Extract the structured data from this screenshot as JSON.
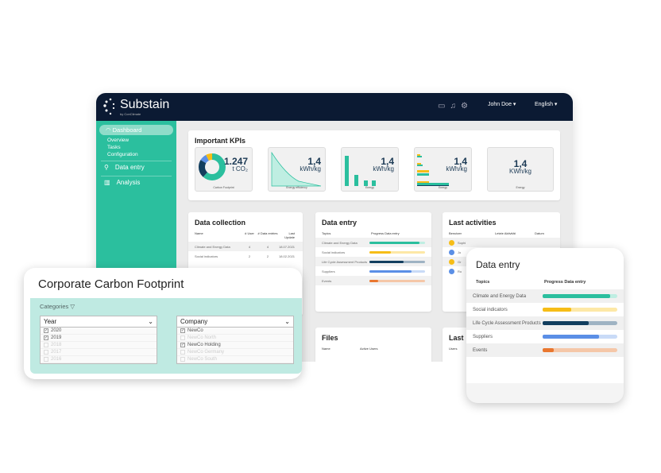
{
  "header": {
    "brand": "Substain",
    "brand_sub": "by ConClimate",
    "user": "John Doe ▾",
    "language": "English ▾",
    "icons": [
      "chat-icon",
      "bell-icon",
      "gear-icon"
    ]
  },
  "sidebar": {
    "dashboard": "Dashboard",
    "sub_items": [
      "Overview",
      "Tasks",
      "Configuration"
    ],
    "data_entry": "Data entry",
    "analysis": "Analysis"
  },
  "kpis": {
    "title": "Important KPIs",
    "items": [
      {
        "value": "1.247",
        "unit": "t CO₂",
        "label": "Carbon Footprint"
      },
      {
        "value": "1,4",
        "unit": "kWh/kg",
        "label": "Energy efficiency"
      },
      {
        "value": "1,4",
        "unit": "kWh/kg",
        "label": "Energy"
      },
      {
        "value": "1,4",
        "unit": "kWh/kg",
        "label": "Energy"
      },
      {
        "value": "1,4",
        "unit": "KWh/kg",
        "label": "Energy"
      }
    ]
  },
  "data_collection": {
    "title": "Data collection",
    "columns": [
      "Name",
      "# User",
      "# Data entries",
      "Last Update"
    ],
    "rows": [
      [
        "Climate and Energy Data",
        "4",
        "4",
        "18.07.2021"
      ],
      [
        "Social indicators",
        "2",
        "2",
        "18.02.2021"
      ]
    ]
  },
  "data_entry": {
    "title": "Data entry",
    "columns": [
      "Topics",
      "Progress Data entry"
    ],
    "rows": [
      {
        "topic": "Climate and Energy Data",
        "progress": 0.9,
        "color": "#2bbf9e",
        "track": "#bfeee2"
      },
      {
        "topic": "Social indicators",
        "progress": 0.38,
        "color": "#f6bd17",
        "track": "#fde8a6"
      },
      {
        "topic": "Life Cycle Assessment Products",
        "progress": 0.62,
        "color": "#123e5e",
        "track": "#9fb3c3"
      },
      {
        "topic": "Suppliers",
        "progress": 0.76,
        "color": "#5b8fe6",
        "track": "#c9dbf7"
      },
      {
        "topic": "Events",
        "progress": 0.15,
        "color": "#e9772f",
        "track": "#f5c7a8"
      }
    ]
  },
  "last_activities": {
    "title": "Last activities",
    "columns": [
      "Benutzer",
      "Letzte Aktivität",
      "Datum"
    ],
    "users": [
      "Sophi",
      "Jo",
      "Gr",
      "Ro"
    ]
  },
  "files": {
    "title": "Files",
    "columns": [
      "Name",
      "Active Users"
    ]
  },
  "last2": {
    "title": "Last",
    "columns": [
      "Users"
    ]
  },
  "ccf": {
    "title": "Corporate Carbon Footprint",
    "categories": "Categories",
    "year": {
      "label": "Year",
      "options": [
        {
          "t": "2020",
          "c": true
        },
        {
          "t": "2019",
          "c": true
        },
        {
          "t": "2018",
          "c": false
        },
        {
          "t": "2017",
          "c": false
        },
        {
          "t": "2016",
          "c": false
        }
      ]
    },
    "company": {
      "label": "Company",
      "options": [
        {
          "t": "NewCo",
          "c": true
        },
        {
          "t": "NewCo North",
          "c": false
        },
        {
          "t": "NewCo Holding",
          "c": true
        },
        {
          "t": "NewCo Germany",
          "c": false
        },
        {
          "t": "NewCo South",
          "c": false
        }
      ]
    }
  }
}
